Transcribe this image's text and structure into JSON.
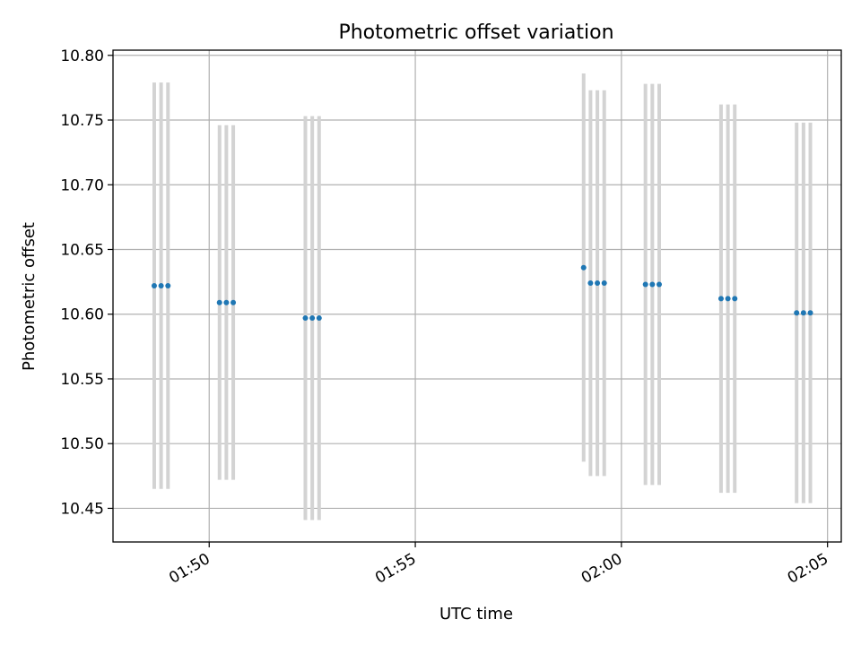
{
  "chart_data": {
    "type": "scatter",
    "title": "Photometric offset variation",
    "xlabel": "UTC time",
    "ylabel": "Photometric offset",
    "grid": true,
    "xlim": [
      "01:47:40",
      "02:05:20"
    ],
    "ylim": [
      10.424,
      10.804
    ],
    "xticks": [
      "01:50",
      "01:55",
      "02:00",
      "02:05"
    ],
    "yticks": [
      "10.45",
      "10.50",
      "10.55",
      "10.60",
      "10.65",
      "10.70",
      "10.75",
      "10.80"
    ],
    "colors": {
      "points": "#1f77b4",
      "errorbars": "#d3d3d3",
      "grid": "#b0b0b0"
    },
    "series": [
      {
        "x": [
          "01:48:40",
          "01:48:50",
          "01:49:00",
          "01:50:15",
          "01:50:25",
          "01:50:35",
          "01:52:20",
          "01:52:30",
          "01:52:40",
          "01:59:05",
          "01:59:15",
          "01:59:25",
          "01:59:35",
          "02:00:35",
          "02:00:45",
          "02:00:55",
          "02:02:25",
          "02:02:35",
          "02:02:45",
          "02:04:15",
          "02:04:25",
          "02:04:35"
        ],
        "y": [
          10.622,
          10.622,
          10.622,
          10.609,
          10.609,
          10.609,
          10.597,
          10.597,
          10.597,
          10.636,
          10.624,
          10.624,
          10.624,
          10.623,
          10.623,
          10.623,
          10.612,
          10.612,
          10.612,
          10.601,
          10.601,
          10.601
        ],
        "yerr": [
          0.157,
          0.157,
          0.157,
          0.137,
          0.137,
          0.137,
          0.156,
          0.156,
          0.156,
          0.15,
          0.149,
          0.149,
          0.149,
          0.155,
          0.155,
          0.155,
          0.15,
          0.15,
          0.15,
          0.147,
          0.147,
          0.147
        ]
      }
    ]
  }
}
